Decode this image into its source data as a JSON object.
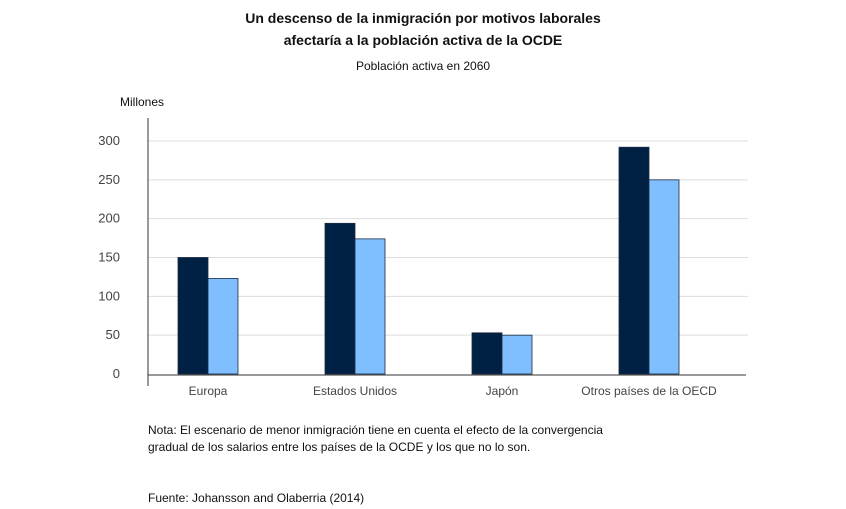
{
  "chart_data": {
    "type": "bar",
    "title_lines": [
      "Un descenso de la inmigración por motivos laborales",
      "afectaría a la población activa de la OCDE"
    ],
    "subtitle": "Población activa en 2060",
    "ylabel": "Millones",
    "xlabel": "",
    "ylim": [
      0,
      300
    ],
    "yticks": [
      0,
      50,
      100,
      150,
      200,
      250,
      300
    ],
    "grid": true,
    "categories": [
      "Europa",
      "Estados Unidos",
      "Japón",
      "Otros países de la OECD"
    ],
    "series": [
      {
        "values": [
          150,
          194,
          53,
          292
        ],
        "color": "#002044"
      },
      {
        "values": [
          123,
          174,
          50,
          250
        ],
        "color": "#80bfff"
      }
    ]
  },
  "note_lines": [
    "Nota: El escenario de menor inmigración tiene en cuenta el efecto de la convergencia",
    "gradual de los salarios entre los países de la OCDE y los que no lo son."
  ],
  "source": "Fuente: Johansson and Olaberria (2014)"
}
